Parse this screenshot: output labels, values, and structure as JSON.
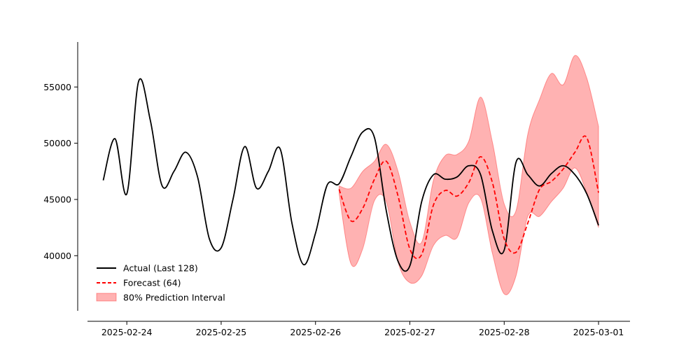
{
  "chart_data": {
    "type": "line",
    "title": "",
    "xlabel": "",
    "ylabel": "",
    "grid": false,
    "legend_position": "lower-left",
    "xlim": [
      "2025-02-23 14:00",
      "2025-03-01 08:00"
    ],
    "ylim": [
      35100,
      59000
    ],
    "x_ticks": [
      "2025-02-24",
      "2025-02-25",
      "2025-02-26",
      "2025-02-27",
      "2025-02-28",
      "2025-03-01"
    ],
    "y_ticks": [
      40000,
      45000,
      50000,
      55000
    ],
    "series": [
      {
        "name": "Actual (Last 128)",
        "color": "#000000",
        "style": "solid",
        "x": [
          "2025-02-23 18:00",
          "2025-02-23 21:00",
          "2025-02-24 00:00",
          "2025-02-24 03:00",
          "2025-02-24 06:00",
          "2025-02-24 09:00",
          "2025-02-24 12:00",
          "2025-02-24 15:00",
          "2025-02-24 18:00",
          "2025-02-24 21:00",
          "2025-02-25 00:00",
          "2025-02-25 03:00",
          "2025-02-25 06:00",
          "2025-02-25 09:00",
          "2025-02-25 12:00",
          "2025-02-25 15:00",
          "2025-02-25 18:00",
          "2025-02-25 21:00",
          "2025-02-26 00:00",
          "2025-02-26 03:00",
          "2025-02-26 06:00",
          "2025-02-26 09:00",
          "2025-02-26 12:00",
          "2025-02-26 15:00",
          "2025-02-26 18:00",
          "2025-02-26 21:00",
          "2025-02-27 00:00",
          "2025-02-27 03:00",
          "2025-02-27 06:00",
          "2025-02-27 09:00",
          "2025-02-27 12:00",
          "2025-02-27 15:00",
          "2025-02-27 18:00",
          "2025-02-27 21:00",
          "2025-02-28 00:00",
          "2025-02-28 03:00",
          "2025-02-28 06:00",
          "2025-02-28 09:00",
          "2025-02-28 12:00",
          "2025-02-28 15:00",
          "2025-02-28 18:00",
          "2025-02-28 21:00",
          "2025-03-01 00:00"
        ],
        "values": [
          46700,
          50400,
          45500,
          55500,
          52000,
          46200,
          47500,
          49200,
          47000,
          41500,
          40700,
          45000,
          49700,
          46000,
          47500,
          49500,
          42900,
          39200,
          42000,
          46300,
          46400,
          48800,
          51000,
          50500,
          44000,
          39500,
          39100,
          44800,
          47200,
          46800,
          47000,
          48000,
          47200,
          42200,
          40500,
          48300,
          47200,
          46200,
          47300,
          48000,
          47200,
          45500,
          42700
        ]
      },
      {
        "name": "Forecast (64)",
        "color": "#ff0000",
        "style": "dashed",
        "x": [
          "2025-02-26 06:00",
          "2025-02-26 09:00",
          "2025-02-26 12:00",
          "2025-02-26 15:00",
          "2025-02-26 18:00",
          "2025-02-26 21:00",
          "2025-02-27 00:00",
          "2025-02-27 03:00",
          "2025-02-27 06:00",
          "2025-02-27 09:00",
          "2025-02-27 12:00",
          "2025-02-27 15:00",
          "2025-02-27 18:00",
          "2025-02-27 21:00",
          "2025-02-28 00:00",
          "2025-02-28 03:00",
          "2025-02-28 06:00",
          "2025-02-28 09:00",
          "2025-02-28 12:00",
          "2025-02-28 15:00",
          "2025-02-28 18:00",
          "2025-02-28 21:00",
          "2025-03-01 00:00"
        ],
        "values": [
          45900,
          43100,
          44200,
          46800,
          48400,
          45300,
          40600,
          40100,
          44500,
          45800,
          45300,
          46500,
          48800,
          46500,
          41500,
          40300,
          42900,
          45900,
          46600,
          47700,
          49200,
          50500,
          45600
        ]
      }
    ],
    "band": {
      "name": "80% Prediction Interval",
      "color": "#ff0000",
      "opacity": 0.3,
      "x": [
        "2025-02-26 06:00",
        "2025-02-26 09:00",
        "2025-02-26 12:00",
        "2025-02-26 15:00",
        "2025-02-26 18:00",
        "2025-02-26 21:00",
        "2025-02-27 00:00",
        "2025-02-27 03:00",
        "2025-02-27 06:00",
        "2025-02-27 09:00",
        "2025-02-27 12:00",
        "2025-02-27 15:00",
        "2025-02-27 18:00",
        "2025-02-27 21:00",
        "2025-02-28 00:00",
        "2025-02-28 03:00",
        "2025-02-28 06:00",
        "2025-02-28 09:00",
        "2025-02-28 12:00",
        "2025-02-28 15:00",
        "2025-02-28 18:00",
        "2025-02-28 21:00",
        "2025-03-01 00:00"
      ],
      "upper": [
        46200,
        46000,
        47500,
        48400,
        49900,
        47500,
        43000,
        41200,
        46700,
        48900,
        49000,
        50200,
        54100,
        50100,
        44600,
        44000,
        50800,
        53900,
        56200,
        55200,
        57800,
        55800,
        51500
      ],
      "lower": [
        45500,
        39300,
        40600,
        44900,
        44800,
        39400,
        37600,
        38200,
        40900,
        41800,
        41600,
        44700,
        45100,
        40200,
        36600,
        38200,
        43500,
        43500,
        44800,
        46000,
        47800,
        45600,
        42500
      ]
    }
  }
}
